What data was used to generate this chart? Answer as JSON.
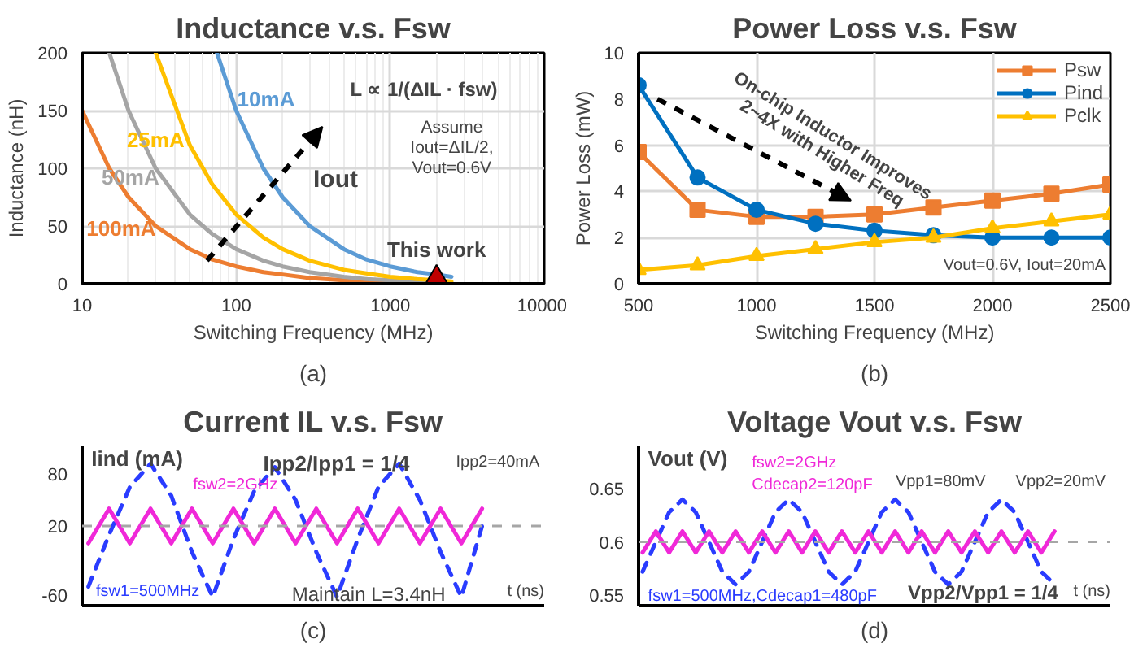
{
  "chart_data": [
    {
      "type": "line",
      "title": "Inductance v.s. Fsw",
      "xlabel": "Switching Frequency (MHz)",
      "ylabel": "Inductance (nH)",
      "log": "x",
      "xlim": [
        10,
        10000
      ],
      "xticks": [
        10,
        100,
        1000,
        10000
      ],
      "ylim": [
        0,
        200
      ],
      "yticks": [
        0,
        50,
        100,
        150,
        200
      ],
      "grid": true,
      "legend": false,
      "series": [
        {
          "name": "100mA",
          "color": "#ed7d31",
          "x": [
            10,
            15,
            20,
            30,
            50,
            70,
            100,
            150,
            200,
            300,
            500,
            700,
            1000,
            1500
          ],
          "values": [
            150,
            100,
            75,
            50,
            30,
            21,
            15,
            10,
            8,
            5,
            3,
            2,
            2,
            1
          ]
        },
        {
          "name": "50mA",
          "color": "#a5a5a5",
          "x": [
            15,
            20,
            30,
            50,
            70,
            100,
            150,
            200,
            300,
            500,
            700,
            1000,
            1500,
            2000,
            2500
          ],
          "values": [
            200,
            150,
            100,
            60,
            43,
            30,
            20,
            15,
            10,
            6,
            4,
            3,
            2,
            2,
            1
          ]
        },
        {
          "name": "25mA",
          "color": "#ffc000",
          "x": [
            30,
            50,
            70,
            100,
            150,
            200,
            300,
            500,
            700,
            1000,
            1500,
            2000,
            2500
          ],
          "values": [
            200,
            120,
            86,
            60,
            40,
            30,
            20,
            12,
            9,
            6,
            4,
            3,
            2
          ]
        },
        {
          "name": "10mA",
          "color": "#5b9bd5",
          "x": [
            75,
            100,
            150,
            200,
            300,
            500,
            700,
            1000,
            1500,
            2000,
            2500
          ],
          "values": [
            200,
            150,
            100,
            75,
            50,
            30,
            21,
            15,
            10,
            8,
            6
          ]
        },
        {
          "name": "This work",
          "type": "scatter",
          "marker": "triangle",
          "color": "#c00000",
          "x": [
            2000
          ],
          "values": [
            5
          ]
        }
      ],
      "annotations": [
        "L ∝ 1/(ΔIL · fsw)",
        "Iout",
        "Assume Iout=ΔIL/2, Vout=0.6V",
        "(a)"
      ]
    },
    {
      "type": "line",
      "title": "Power Loss v.s. Fsw",
      "xlabel": "Switching Frequency (MHz)",
      "ylabel": "Power Loss (mW)",
      "xlim": [
        500,
        2500
      ],
      "xticks": [
        500,
        1000,
        1500,
        2000,
        2500
      ],
      "ylim": [
        0,
        10
      ],
      "yticks": [
        0,
        2,
        4,
        6,
        8,
        10
      ],
      "grid": true,
      "legend": "top right",
      "x": [
        500,
        750,
        1000,
        1250,
        1500,
        1750,
        2000,
        2250,
        2500
      ],
      "series": [
        {
          "name": "Psw",
          "color": "#ed7d31",
          "marker": "square",
          "values": [
            5.7,
            3.2,
            2.9,
            2.9,
            3.0,
            3.3,
            3.6,
            3.9,
            4.3
          ]
        },
        {
          "name": "Pind",
          "color": "#0070c0",
          "marker": "circle",
          "values": [
            8.6,
            4.6,
            3.2,
            2.6,
            2.3,
            2.1,
            2.0,
            2.0,
            2.0
          ]
        },
        {
          "name": "Pclk",
          "color": "#ffc000",
          "marker": "triangle",
          "values": [
            0.6,
            0.8,
            1.2,
            1.5,
            1.8,
            2.0,
            2.4,
            2.7,
            3.0
          ]
        }
      ],
      "annotations": [
        "On-chip Inductor Improves 2~4X with Higher Freq",
        "Vout=0.6V, Iout=20mA",
        "(b)"
      ]
    },
    {
      "type": "line",
      "title": "Current IL v.s. Fsw",
      "xlabel": "t (ns)",
      "ylabel": "Iind (mA)",
      "ylim": [
        -72,
        112
      ],
      "yticks": [
        -60,
        20,
        80
      ],
      "tick_labels": "y",
      "categories": [
        null,
        null,
        null,
        null,
        null,
        null,
        null,
        null,
        null,
        null,
        null,
        null,
        null,
        null,
        null,
        null,
        null,
        null,
        null,
        null
      ],
      "series": [
        {
          "name": "fsw1=500MHz",
          "color": "#2a3cff",
          "line_style": "dashed",
          "values": [
            -50,
            10,
            65,
            92,
            55,
            -10,
            -62,
            5,
            60,
            88,
            50,
            -10,
            -62,
            5,
            65,
            92,
            50,
            -10,
            -62,
            20
          ]
        },
        {
          "name": "fsw2=2GHz",
          "color": "#f028d8",
          "line_style": "solid",
          "values": [
            0,
            40,
            0,
            40,
            0,
            40,
            0,
            40,
            0,
            40,
            0,
            40,
            0,
            40,
            0,
            40,
            0,
            40,
            0,
            40
          ]
        }
      ],
      "ref_lines": [
        {
          "axis": "y",
          "value": 20,
          "color": "#a6a6a6",
          "line_style": "dashed"
        }
      ],
      "annotations": [
        "Ipp2/Ipp1 = 1/4",
        "Ipp2=40mA",
        "Maintain L=3.4nH",
        "(c)"
      ]
    },
    {
      "type": "line",
      "title": "Voltage Vout v.s. Fsw",
      "xlabel": "t (ns)",
      "ylabel": "Vout (V)",
      "ylim": [
        0.54,
        0.69
      ],
      "yticks": [
        0.55,
        0.6,
        0.65
      ],
      "tick_labels": "y",
      "categories": [
        null,
        null,
        null,
        null,
        null,
        null,
        null,
        null,
        null,
        null,
        null,
        null,
        null,
        null,
        null,
        null,
        null,
        null,
        null,
        null,
        null,
        null,
        null,
        null,
        null,
        null,
        null,
        null,
        null,
        null,
        null,
        null
      ],
      "series": [
        {
          "name": "fsw1=500MHz,Cdecap1=480pF",
          "color": "#2a3cff",
          "line_style": "dashed",
          "values": [
            0.572,
            0.6,
            0.628,
            0.64,
            0.628,
            0.6,
            0.572,
            0.56,
            0.572,
            0.6,
            0.628,
            0.64,
            0.628,
            0.6,
            0.572,
            0.56,
            0.572,
            0.6,
            0.628,
            0.64,
            0.628,
            0.6,
            0.572,
            0.56,
            0.572,
            0.6,
            0.628,
            0.64,
            0.628,
            0.6,
            0.572,
            0.56
          ]
        },
        {
          "name": "fsw2=2GHz\nCdecap2=120pF",
          "color": "#f028d8",
          "line_style": "solid",
          "values": [
            0.59,
            0.61,
            0.59,
            0.61,
            0.59,
            0.61,
            0.59,
            0.61,
            0.59,
            0.61,
            0.59,
            0.61,
            0.59,
            0.61,
            0.59,
            0.61,
            0.59,
            0.61,
            0.59,
            0.61,
            0.59,
            0.61,
            0.59,
            0.61,
            0.59,
            0.61,
            0.59,
            0.61,
            0.59,
            0.61,
            0.59,
            0.61
          ]
        }
      ],
      "ref_lines": [
        {
          "axis": "y",
          "value": 0.6,
          "color": "#a6a6a6",
          "line_style": "dashed"
        }
      ],
      "annotations": [
        "Vpp1=80mV",
        "Vpp2=20mV",
        "Vpp2/Vpp1 = 1/4",
        "(d)"
      ]
    }
  ]
}
